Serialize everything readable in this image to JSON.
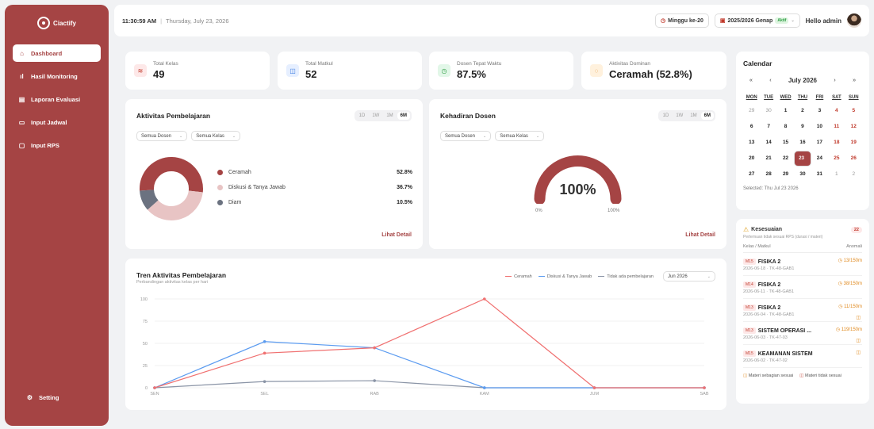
{
  "brand": {
    "name": "Ciactify"
  },
  "sidebar": {
    "items": [
      {
        "label": "Dashboard",
        "icon": "home-icon"
      },
      {
        "label": "Hasil Monitoring",
        "icon": "bar-chart-icon"
      },
      {
        "label": "Laporan Evaluasi",
        "icon": "document-icon"
      },
      {
        "label": "Input Jadwal",
        "icon": "calendar-icon"
      },
      {
        "label": "Input RPS",
        "icon": "file-icon"
      }
    ],
    "setting_label": "Setting"
  },
  "topbar": {
    "time": "11:30:59 AM",
    "date": "Thursday, July 23, 2026",
    "week_label": "Minggu ke-20",
    "semester_label": "2025/2026 Genap",
    "semester_badge": "Aktif",
    "greeting": "Hello admin"
  },
  "stats": [
    {
      "label": "Total Kelas",
      "value": "49",
      "icon": "layers-icon"
    },
    {
      "label": "Total Matkul",
      "value": "52",
      "icon": "book-icon"
    },
    {
      "label": "Dosen Tepat Waktu",
      "value": "87.5%",
      "icon": "clock-icon"
    },
    {
      "label": "Aktivitas Dominan",
      "value": "Ceramah (52.8%)",
      "icon": "chat-icon"
    }
  ],
  "ranges": [
    "1D",
    "1W",
    "1M",
    "6M"
  ],
  "aktivitas": {
    "title": "Aktivitas Pembelajaran",
    "filter_dosen": "Semua Dosen",
    "filter_kelas": "Semua Kelas",
    "legend": [
      {
        "name": "Ceramah",
        "value": "52.8%",
        "pct": 52.8,
        "color": "#a54444"
      },
      {
        "name": "Diskusi & Tanya Jawab",
        "value": "36.7%",
        "pct": 36.7,
        "color": "#e8c4c4"
      },
      {
        "name": "Diam",
        "value": "10.5%",
        "pct": 10.5,
        "color": "#6b7280"
      }
    ],
    "link": "Lihat Detail"
  },
  "kehadiran": {
    "title": "Kehadiran Dosen",
    "filter_dosen": "Semua Dosen",
    "filter_kelas": "Semua Kelas",
    "gauge_value": "100%",
    "gauge_fraction": 1.0,
    "min_label": "0%",
    "max_label": "100%",
    "link": "Lihat Detail"
  },
  "calendar": {
    "title": "Calendar",
    "month": "July 2026",
    "nav": [
      "«",
      "‹",
      "›",
      "»"
    ],
    "weekdays": [
      "MON",
      "TUE",
      "WED",
      "THU",
      "FRI",
      "SAT",
      "SUN"
    ],
    "days": [
      {
        "d": "29",
        "t": "m"
      },
      {
        "d": "30",
        "t": "m"
      },
      {
        "d": "1"
      },
      {
        "d": "2"
      },
      {
        "d": "3"
      },
      {
        "d": "4",
        "t": "w"
      },
      {
        "d": "5",
        "t": "w"
      },
      {
        "d": "6"
      },
      {
        "d": "7"
      },
      {
        "d": "8"
      },
      {
        "d": "9"
      },
      {
        "d": "10"
      },
      {
        "d": "11",
        "t": "w"
      },
      {
        "d": "12",
        "t": "w"
      },
      {
        "d": "13"
      },
      {
        "d": "14"
      },
      {
        "d": "15"
      },
      {
        "d": "16"
      },
      {
        "d": "17"
      },
      {
        "d": "18",
        "t": "w"
      },
      {
        "d": "19",
        "t": "w"
      },
      {
        "d": "20"
      },
      {
        "d": "21"
      },
      {
        "d": "22"
      },
      {
        "d": "23",
        "t": "s"
      },
      {
        "d": "24"
      },
      {
        "d": "25",
        "t": "w"
      },
      {
        "d": "26",
        "t": "w"
      },
      {
        "d": "27"
      },
      {
        "d": "28"
      },
      {
        "d": "29"
      },
      {
        "d": "30"
      },
      {
        "d": "31"
      },
      {
        "d": "1",
        "t": "m"
      },
      {
        "d": "2",
        "t": "m"
      }
    ],
    "selected_text": "Selected: Thu Jul 23 2026"
  },
  "kesesuaian": {
    "title": "Kesesuaian",
    "count": "22",
    "subtitle": "Pertemuan tidak sesuai RPS (durasi / materi)",
    "col_left": "Kelas / Matkul",
    "col_right": "Anomali",
    "items": [
      {
        "tag": "M15",
        "name": "FISIKA 2",
        "sub": "2026-06-18 · TK-48-GAB1",
        "val": "13/150m",
        "flag": false
      },
      {
        "tag": "M14",
        "name": "FISIKA 2",
        "sub": "2026-06-11 · TK-48-GAB1",
        "val": "38/150m",
        "flag": false
      },
      {
        "tag": "M13",
        "name": "FISIKA 2",
        "sub": "2026-06-04 · TK-48-GAB1",
        "val": "11/150m",
        "flag": true
      },
      {
        "tag": "M13",
        "name": "SISTEM OPERASI ...",
        "sub": "2026-06-03 · TK-47-03",
        "val": "119/150m",
        "flag": true
      },
      {
        "tag": "M15",
        "name": "KEAMANAN SISTEM",
        "sub": "2026-06-02 · TK-47-02",
        "val": "",
        "flag": true
      }
    ],
    "legend_a": "Materi sebagian sesuai",
    "legend_b": "Materi tidak sesuai"
  },
  "tren": {
    "title": "Tren Aktivitas Pembelajaran",
    "subtitle": "Perbandingan aktivitas kelas per hari",
    "month_select": "Jun 2026"
  },
  "chart_data": {
    "type": "line",
    "x": [
      "SEN",
      "SEL",
      "RAB",
      "KAM",
      "JUM",
      "SAB"
    ],
    "ylim": [
      0,
      100
    ],
    "yticks": [
      0,
      25,
      50,
      75,
      100
    ],
    "grid": true,
    "legend_position": "top-right",
    "series": [
      {
        "name": "Ceramah",
        "color": "#f07070",
        "values": [
          0,
          39,
          45,
          100,
          0,
          0
        ]
      },
      {
        "name": "Diskusi & Tanya Jawab",
        "color": "#5b9bf0",
        "values": [
          0,
          52,
          45,
          0,
          0,
          0
        ]
      },
      {
        "name": "Tidak ada pembelajaran",
        "color": "#8a94a6",
        "values": [
          0,
          7,
          8,
          0,
          0,
          0
        ]
      }
    ]
  }
}
